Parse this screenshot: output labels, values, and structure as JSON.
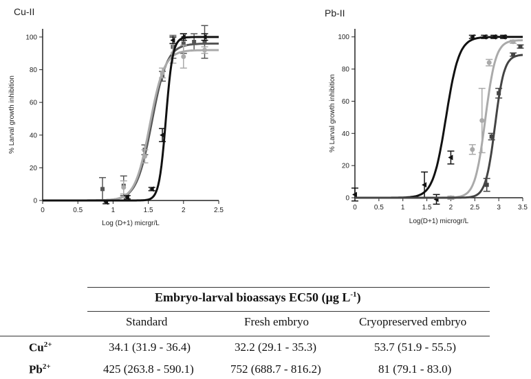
{
  "chart_data": [
    {
      "type": "line",
      "title": "Cu-II",
      "xlabel": "Log (D+1) micrgr/L",
      "ylabel": "% Larval growth inhibition",
      "xlim": [
        0,
        2.5
      ],
      "ylim": [
        0,
        105
      ],
      "xticks": [
        "0",
        "0.5",
        "1",
        "1.5",
        "2",
        "2.5"
      ],
      "yticks": [
        "0",
        "20",
        "40",
        "60",
        "80",
        "100"
      ],
      "series": [
        {
          "color": "#555555",
          "marker": "square",
          "curve": {
            "bottom": 0,
            "top": 96,
            "logEC50": 1.55,
            "hill": 4.0
          },
          "points": [
            {
              "x": 0.85,
              "y": 7,
              "err": 7
            },
            {
              "x": 1.15,
              "y": 9,
              "err": 6
            },
            {
              "x": 1.45,
              "y": 31,
              "err": 3
            },
            {
              "x": 1.7,
              "y": 76,
              "err": 3
            },
            {
              "x": 1.85,
              "y": 94,
              "err": 7
            },
            {
              "x": 2.0,
              "y": 96,
              "err": 6
            },
            {
              "x": 2.15,
              "y": 97,
              "err": 5
            },
            {
              "x": 2.3,
              "y": 97,
              "err": 10
            }
          ]
        },
        {
          "color": "#aaaaaa",
          "marker": "circle",
          "curve": {
            "bottom": 0,
            "top": 92,
            "logEC50": 1.52,
            "hill": 4.2
          },
          "points": [
            {
              "x": 1.15,
              "y": 8,
              "err": 4
            },
            {
              "x": 1.45,
              "y": 27,
              "err": 4
            },
            {
              "x": 1.7,
              "y": 78,
              "err": 3
            },
            {
              "x": 1.85,
              "y": 90,
              "err": 6
            },
            {
              "x": 2.0,
              "y": 88,
              "err": 7
            },
            {
              "x": 2.3,
              "y": 92,
              "err": 2
            }
          ]
        },
        {
          "color": "#111111",
          "marker": "triangle",
          "curve": {
            "bottom": 0,
            "top": 100,
            "logEC50": 1.75,
            "hill": 9.0
          },
          "points": [
            {
              "x": 0.9,
              "y": -1,
              "err": 1
            },
            {
              "x": 1.2,
              "y": 2,
              "err": 1
            },
            {
              "x": 1.55,
              "y": 7,
              "err": 1
            },
            {
              "x": 1.7,
              "y": 40,
              "err": 4
            },
            {
              "x": 1.85,
              "y": 98,
              "err": 2
            },
            {
              "x": 2.0,
              "y": 100,
              "err": 2
            },
            {
              "x": 2.3,
              "y": 100,
              "err": 2
            }
          ]
        }
      ]
    },
    {
      "type": "line",
      "title": "Pb-II",
      "xlabel": "Log(D+1) microgr/L",
      "ylabel": "% Larval growth inhibition",
      "xlim": [
        0,
        3.5
      ],
      "ylim": [
        0,
        105
      ],
      "xticks": [
        "0",
        "0.5",
        "1",
        "1.5",
        "2",
        "2.5",
        "3",
        "3.5"
      ],
      "yticks": [
        "0",
        "20",
        "40",
        "60",
        "80",
        "100"
      ],
      "series": [
        {
          "color": "#111111",
          "marker": "triangle",
          "curve": {
            "bottom": 0,
            "top": 100,
            "logEC50": 1.9,
            "hill": 3.2
          },
          "points": [
            {
              "x": 0,
              "y": 2,
              "err": 4
            },
            {
              "x": 1.45,
              "y": 8,
              "err": 8
            },
            {
              "x": 1.7,
              "y": -1,
              "err": 3
            },
            {
              "x": 2.0,
              "y": 25,
              "err": 4
            },
            {
              "x": 2.45,
              "y": 100,
              "err": 1
            },
            {
              "x": 2.7,
              "y": 100,
              "err": 1
            },
            {
              "x": 2.9,
              "y": 100,
              "err": 1
            },
            {
              "x": 3.1,
              "y": 100,
              "err": 1
            }
          ]
        },
        {
          "color": "#aaaaaa",
          "marker": "circle",
          "curve": {
            "bottom": 0,
            "top": 98,
            "logEC50": 2.72,
            "hill": 4.0
          },
          "points": [
            {
              "x": 2.0,
              "y": 0,
              "err": 1
            },
            {
              "x": 2.45,
              "y": 30,
              "err": 3
            },
            {
              "x": 2.65,
              "y": 48,
              "err": 20
            },
            {
              "x": 2.8,
              "y": 84,
              "err": 2
            },
            {
              "x": 3.3,
              "y": 97,
              "err": 1
            }
          ]
        },
        {
          "color": "#444444",
          "marker": "square",
          "curve": {
            "bottom": 0,
            "top": 89,
            "logEC50": 2.92,
            "hill": 4.5
          },
          "points": [
            {
              "x": 2.75,
              "y": 8,
              "err": 4
            },
            {
              "x": 2.85,
              "y": 38,
              "err": 2
            },
            {
              "x": 3.0,
              "y": 65,
              "err": 3
            },
            {
              "x": 3.3,
              "y": 89,
              "err": 1
            },
            {
              "x": 3.45,
              "y": 94,
              "err": 1
            }
          ]
        }
      ]
    }
  ],
  "table": {
    "title": "Embryo-larval bioassays EC50 (µg L",
    "title_sup": "-1",
    "title_end": ")",
    "columns": [
      "Standard",
      "Fresh embryo",
      "Cryopreserved embryo"
    ],
    "rows": [
      {
        "label": "Cu",
        "sup": "2+",
        "values": [
          "34.1 (31.9 - 36.4)",
          "32.2 (29.1 - 35.3)",
          "53.7 (51.9 - 55.5)"
        ]
      },
      {
        "label": "Pb",
        "sup": "2+",
        "values": [
          "425 (263.8 - 590.1)",
          "752 (688.7 - 816.2)",
          "81 (79.1 - 83.0)"
        ]
      }
    ]
  }
}
